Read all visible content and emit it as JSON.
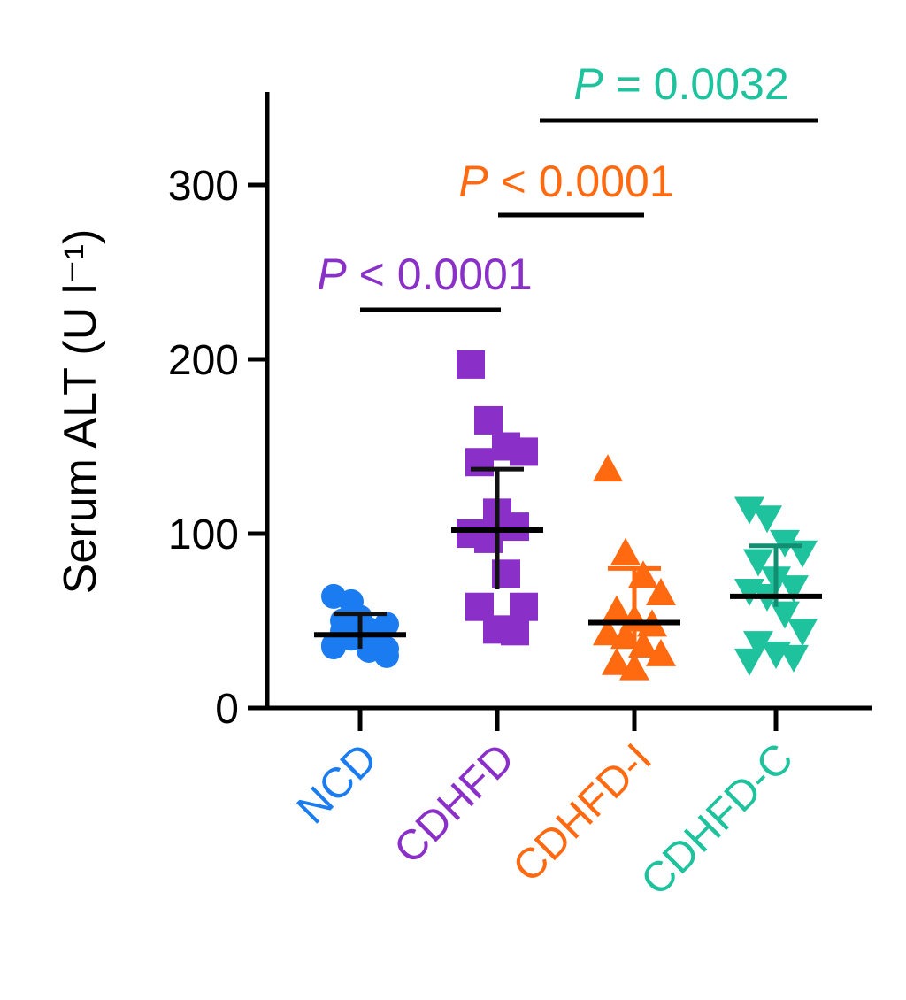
{
  "chart_data": {
    "type": "scatter",
    "title": "",
    "xlabel": "",
    "ylabel": "Serum ALT (U l⁻¹)",
    "ylim": [
      0,
      350
    ],
    "yticks": [
      "0",
      "100",
      "200",
      "300"
    ],
    "ytick_values": [
      0,
      100,
      200,
      300
    ],
    "grid": false,
    "categories": [
      "NCD",
      "CDHFD",
      "CDHFD-I",
      "CDHFD-C"
    ],
    "series": [
      {
        "name": "NCD",
        "color": "#1a7cf0",
        "marker": "circle",
        "values": [
          64,
          61,
          45,
          48,
          50,
          42,
          38,
          35,
          40,
          33,
          30,
          44,
          52,
          38,
          36,
          47,
          41,
          34
        ],
        "mean": 42,
        "sd_upper": 54,
        "sd_lower": 34
      },
      {
        "name": "CDHFD",
        "color": "#8a30c8",
        "marker": "square",
        "values": [
          197,
          165,
          150,
          147,
          141,
          112,
          104,
          100,
          97,
          77,
          58,
          58,
          45,
          44
        ],
        "mean": 102,
        "sd_upper": 137,
        "sd_lower": 68
      },
      {
        "name": "CDHFD-I",
        "color": "#ff6a10",
        "marker": "triangle-up",
        "values": [
          136,
          88,
          75,
          65,
          55,
          50,
          47,
          42,
          40,
          35,
          30,
          25,
          22
        ],
        "mean": 49,
        "sd_upper": 80,
        "sd_lower": 35
      },
      {
        "name": "CDHFD-C",
        "color": "#1ec39d",
        "marker": "triangle-down",
        "values": [
          115,
          110,
          96,
          90,
          85,
          75,
          70,
          68,
          65,
          55,
          45,
          38,
          32,
          30,
          28
        ],
        "mean": 64,
        "sd_upper": 93,
        "sd_lower": 58
      }
    ],
    "annotations": [
      {
        "from": "NCD",
        "to": "CDHFD",
        "text_prefix": "P",
        "text": " < 0.0001",
        "color": "#8a30c8"
      },
      {
        "from": "CDHFD",
        "to": "CDHFD-I",
        "text_prefix": "P",
        "text": " < 0.0001",
        "color": "#ff6a10"
      },
      {
        "from": "CDHFD",
        "to": "CDHFD-C",
        "text_prefix": "P",
        "text": " = 0.0032",
        "color": "#1ec39d"
      }
    ]
  }
}
